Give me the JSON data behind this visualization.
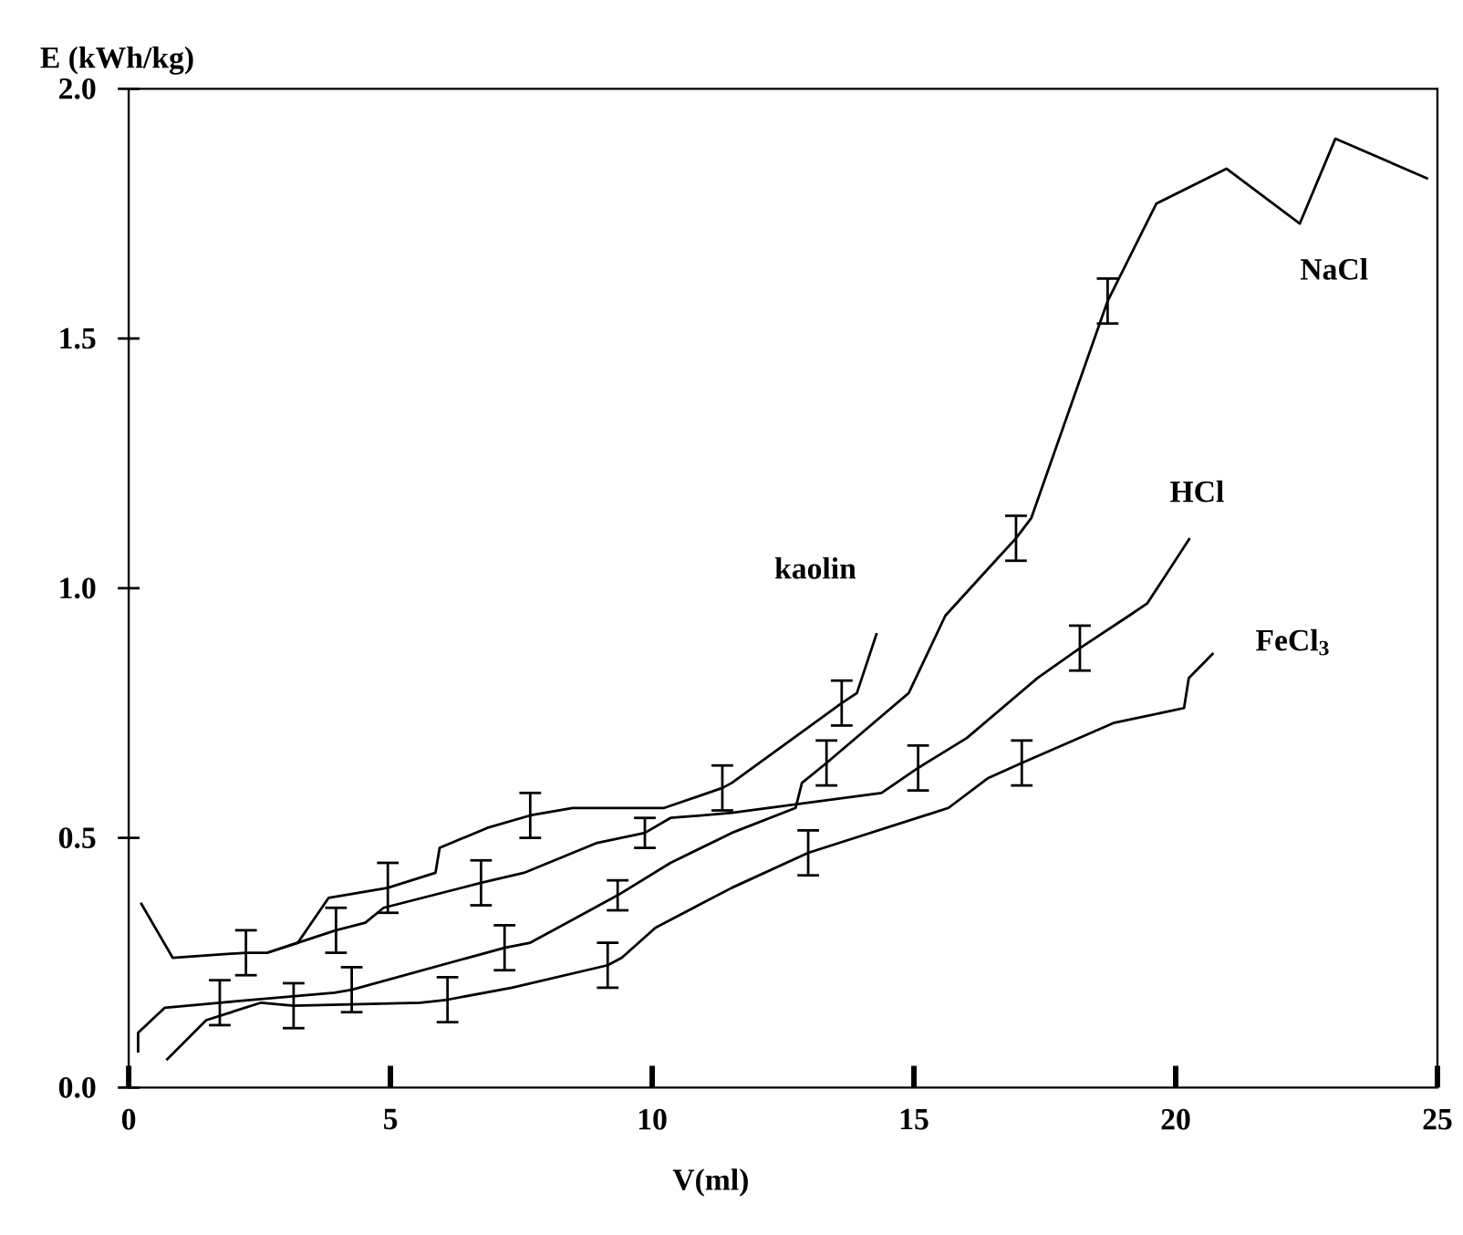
{
  "chart_data": {
    "type": "line",
    "xlabel": "V(ml)",
    "ylabel": "E (kWh/kg)",
    "xlim": [
      0,
      25
    ],
    "xticks": [
      0,
      5,
      10,
      15,
      20,
      25
    ],
    "ylim": [
      0,
      2
    ],
    "yticks": [
      {
        "value": 0,
        "label": "0.0"
      },
      {
        "value": 0.5,
        "label": "0.5"
      },
      {
        "value": 1,
        "label": "1.0"
      },
      {
        "value": 1.5,
        "label": "1.5"
      },
      {
        "value": 2,
        "label": "2.0"
      }
    ],
    "grid": false,
    "legend": false,
    "marker": "none",
    "line_style": "solid",
    "series": [
      {
        "name": "kaolin",
        "color": "#000000",
        "x": [
          0.23,
          0.84,
          2.24,
          2.65,
          3.23,
          3.82,
          4.95,
          5.86,
          5.94,
          6.85,
          7.67,
          8.48,
          10.23,
          11.34,
          11.52,
          13.62,
          13.91,
          14.29
        ],
        "values": [
          0.37,
          0.26,
          0.27,
          0.27,
          0.29,
          0.38,
          0.4,
          0.43,
          0.48,
          0.52,
          0.545,
          0.56,
          0.56,
          0.6,
          0.61,
          0.77,
          0.79,
          0.91
        ],
        "errors": [
          null,
          null,
          0.045,
          null,
          null,
          null,
          0.05,
          null,
          null,
          null,
          0.045,
          null,
          null,
          0.045,
          null,
          0.045,
          null,
          null
        ]
      },
      {
        "name": "NaCl",
        "color": "#000000",
        "x": [
          0.18,
          0.18,
          0.69,
          1.74,
          3.93,
          4.26,
          7.18,
          7.67,
          9.34,
          10.35,
          11.52,
          12.74,
          12.86,
          13.33,
          14.9,
          15.6,
          16.6,
          16.95,
          17.24,
          18.7,
          19.63,
          20.97,
          22.37,
          23.05,
          24.82
        ],
        "values": [
          0.07,
          0.11,
          0.16,
          0.17,
          0.19,
          0.196,
          0.28,
          0.29,
          0.385,
          0.45,
          0.51,
          0.56,
          0.61,
          0.65,
          0.79,
          0.945,
          1.06,
          1.1,
          1.14,
          1.575,
          1.77,
          1.84,
          1.73,
          1.9,
          1.82
        ],
        "errors": [
          null,
          null,
          null,
          0.045,
          null,
          0.045,
          0.045,
          null,
          0.03,
          null,
          null,
          null,
          null,
          0.045,
          null,
          null,
          null,
          0.045,
          null,
          0.045,
          null,
          null,
          null,
          null,
          null
        ]
      },
      {
        "name": "HCl",
        "color": "#000000",
        "x": [
          2.65,
          3.23,
          3.96,
          4.52,
          4.87,
          6.73,
          7.55,
          8.95,
          9.86,
          10.35,
          11.52,
          14.38,
          15.08,
          16.01,
          17.36,
          18.17,
          19.11,
          19.46,
          20.27
        ],
        "values": [
          0.27,
          0.29,
          0.315,
          0.33,
          0.36,
          0.41,
          0.43,
          0.49,
          0.51,
          0.54,
          0.55,
          0.59,
          0.64,
          0.7,
          0.82,
          0.88,
          0.945,
          0.97,
          1.1
        ],
        "errors": [
          null,
          null,
          0.045,
          null,
          null,
          0.045,
          null,
          null,
          0.03,
          null,
          null,
          null,
          0.045,
          null,
          null,
          0.045,
          null,
          null,
          null
        ]
      },
      {
        "name": "FeCl$_{3}$",
        "color": "#000000",
        "x": [
          0.72,
          1.48,
          2.53,
          3.15,
          5.57,
          6.09,
          7.32,
          9.15,
          9.42,
          10.06,
          11.52,
          12.98,
          15.66,
          16.42,
          17.06,
          18.81,
          20.16,
          20.25,
          20.72
        ],
        "values": [
          0.055,
          0.135,
          0.17,
          0.164,
          0.17,
          0.176,
          0.2,
          0.245,
          0.26,
          0.32,
          0.4,
          0.47,
          0.56,
          0.62,
          0.65,
          0.73,
          0.76,
          0.82,
          0.87
        ],
        "errors": [
          null,
          null,
          null,
          0.045,
          null,
          0.045,
          null,
          0.045,
          null,
          null,
          null,
          0.045,
          null,
          null,
          0.045,
          null,
          null,
          null,
          null
        ]
      }
    ]
  }
}
